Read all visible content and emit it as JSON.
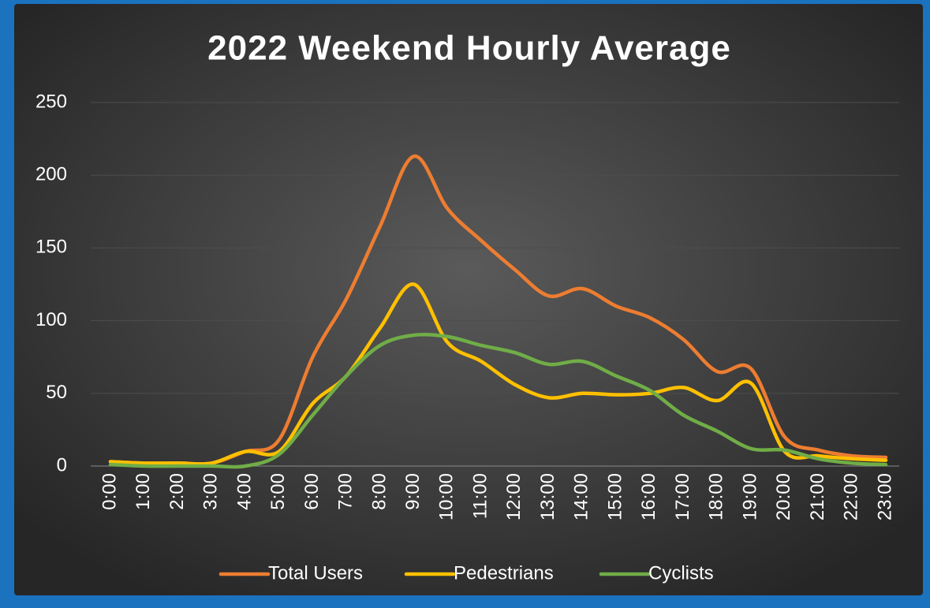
{
  "chart_data": {
    "type": "line",
    "title": "2022 Weekend Hourly Average",
    "categories": [
      "0:00",
      "1:00",
      "2:00",
      "3:00",
      "4:00",
      "5:00",
      "6:00",
      "7:00",
      "8:00",
      "9:00",
      "10:00",
      "11:00",
      "12:00",
      "13:00",
      "14:00",
      "15:00",
      "16:00",
      "17:00",
      "18:00",
      "19:00",
      "20:00",
      "21:00",
      "22:00",
      "23:00"
    ],
    "series": [
      {
        "name": "Total Users",
        "color": "#ed7d31",
        "values": [
          3,
          2,
          2,
          2,
          10,
          18,
          75,
          115,
          165,
          213,
          177,
          155,
          135,
          117,
          122,
          110,
          102,
          87,
          65,
          67,
          20,
          11,
          7,
          6
        ]
      },
      {
        "name": "Pedestrians",
        "color": "#ffc000",
        "values": [
          3,
          2,
          2,
          2,
          10,
          10,
          43,
          62,
          95,
          125,
          85,
          72,
          56,
          47,
          50,
          49,
          50,
          54,
          45,
          57,
          10,
          7,
          5,
          4
        ]
      },
      {
        "name": "Cyclists",
        "color": "#70ad47",
        "values": [
          1,
          0,
          0,
          0,
          0,
          8,
          35,
          62,
          83,
          90,
          89,
          83,
          78,
          70,
          72,
          62,
          52,
          35,
          24,
          12,
          11,
          5,
          2,
          1
        ]
      }
    ],
    "ylim": [
      0,
      250
    ],
    "yticks": [
      0,
      50,
      100,
      150,
      200,
      250
    ],
    "grid": true,
    "smooth": true,
    "legend": "bottom"
  }
}
